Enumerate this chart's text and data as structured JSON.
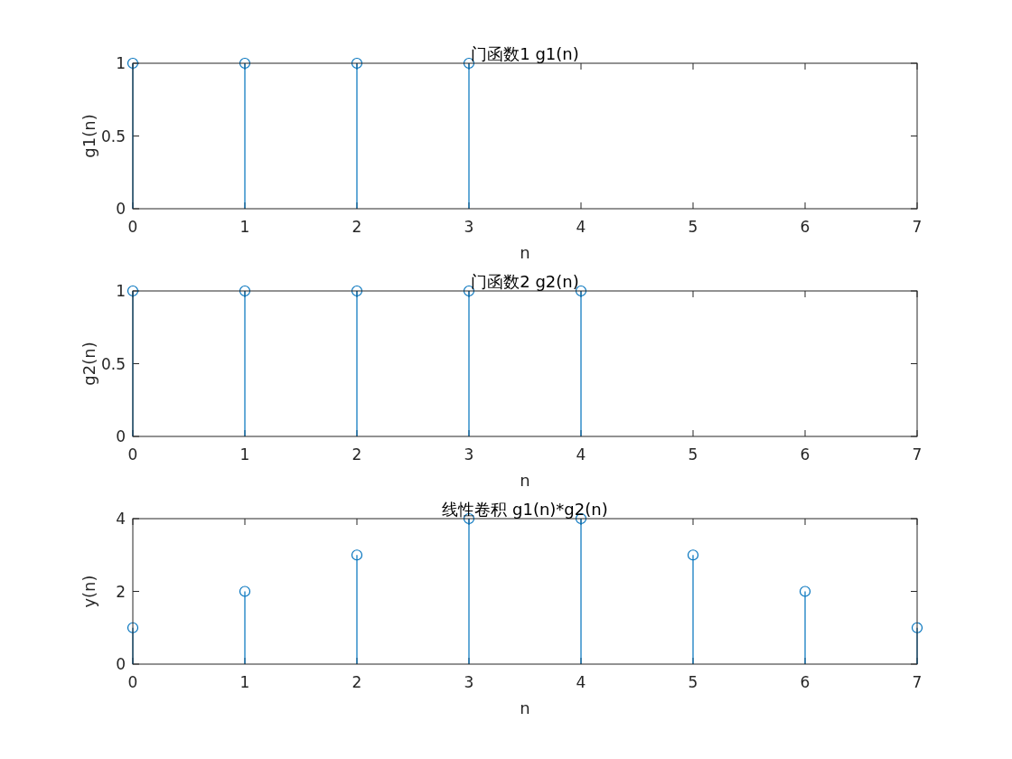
{
  "chart_data": [
    {
      "type": "lollipop",
      "title": "门函数1 g1(n)",
      "xlabel": "n",
      "ylabel": "g1(n)",
      "x": [
        0,
        1,
        2,
        3
      ],
      "values": [
        1,
        1,
        1,
        1
      ],
      "color": "#0072bd",
      "marker": "circle",
      "xlim": [
        0,
        7
      ],
      "xticks": [
        0,
        1,
        2,
        3,
        4,
        5,
        6,
        7
      ],
      "ylim": [
        0,
        1
      ],
      "yticks": [
        0,
        0.5,
        1
      ]
    },
    {
      "type": "lollipop",
      "title": "门函数2 g2(n)",
      "xlabel": "n",
      "ylabel": "g2(n)",
      "x": [
        0,
        1,
        2,
        3,
        4
      ],
      "values": [
        1,
        1,
        1,
        1,
        1
      ],
      "color": "#0072bd",
      "marker": "circle",
      "xlim": [
        0,
        7
      ],
      "xticks": [
        0,
        1,
        2,
        3,
        4,
        5,
        6,
        7
      ],
      "ylim": [
        0,
        1
      ],
      "yticks": [
        0,
        0.5,
        1
      ]
    },
    {
      "type": "lollipop",
      "title": "线性卷积 g1(n)*g2(n)",
      "xlabel": "n",
      "ylabel": "y(n)",
      "x": [
        0,
        1,
        2,
        3,
        4,
        5,
        6,
        7
      ],
      "values": [
        1,
        2,
        3,
        4,
        4,
        3,
        2,
        1
      ],
      "color": "#0072bd",
      "marker": "circle",
      "xlim": [
        0,
        7
      ],
      "xticks": [
        0,
        1,
        2,
        3,
        4,
        5,
        6,
        7
      ],
      "ylim": [
        0,
        4
      ],
      "yticks": [
        0,
        2,
        4
      ]
    }
  ]
}
